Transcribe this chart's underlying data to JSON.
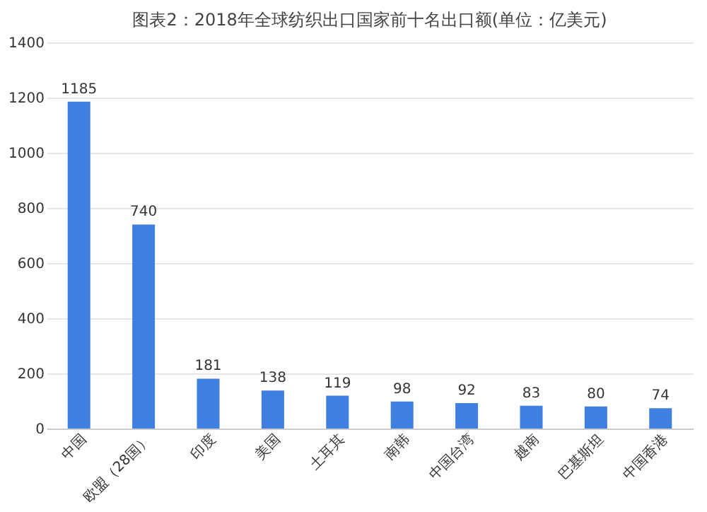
{
  "chart_data": {
    "type": "bar",
    "title": "图表2：2018年全球纺织出口国家前十名出口额(单位：亿美元)",
    "categories": [
      "中国",
      "欧盟（28国）",
      "印度",
      "美国",
      "土耳其",
      "南韩",
      "中国台湾",
      "越南",
      "巴基斯坦",
      "中国香港"
    ],
    "values": [
      1185,
      740,
      181,
      138,
      119,
      98,
      92,
      83,
      80,
      74
    ],
    "color": "#3f7fdf",
    "ylim": [
      0,
      1400
    ],
    "yticks": [
      0,
      200,
      400,
      600,
      800,
      1000,
      1200,
      1400
    ],
    "grid": "y",
    "data_labels": true
  }
}
